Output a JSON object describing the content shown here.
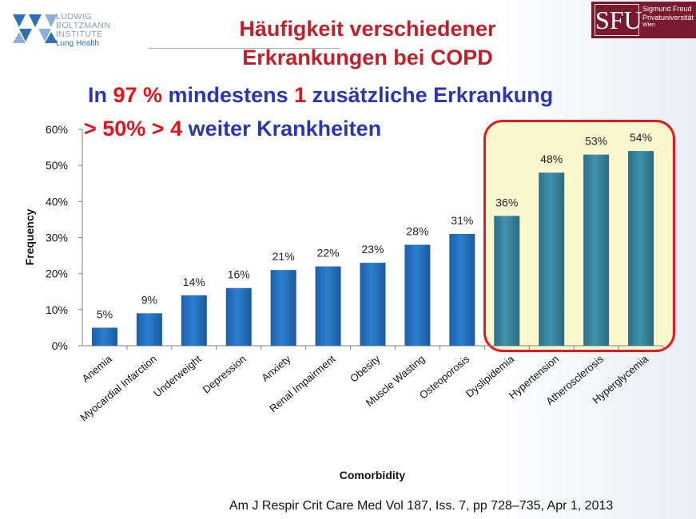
{
  "logo_left": {
    "lines": [
      "LUDWIG",
      "BOLTZMANN",
      "INSTITUTE"
    ],
    "subline": "Lung Health"
  },
  "logo_right": {
    "mark": "SFU",
    "lines": [
      "Sigmund Freud",
      "Privatuniversität",
      "Wien"
    ]
  },
  "title": {
    "line1": "Häufigkeit verschiedener",
    "line2": "Erkrankungen bei COPD"
  },
  "subtitle1": {
    "a": "In ",
    "b": "97 %",
    "c": " mindestens ",
    "d": "1",
    "e": " zusätzliche Erkrankung"
  },
  "subtitle2": {
    "a": "> 50%  > 4",
    "b": " weiter Krankheiten"
  },
  "chart_data": {
    "type": "bar",
    "title": "",
    "xlabel": "Comorbidity",
    "ylabel": "Frequency",
    "ylim": [
      0,
      60
    ],
    "yticks": [
      "0%",
      "10%",
      "20%",
      "30%",
      "40%",
      "50%",
      "60%"
    ],
    "categories": [
      "Anemia",
      "Myocardial Infarction",
      "Underweight",
      "Depression",
      "Anxiety",
      "Renal Impairment",
      "Obesity",
      "Muscle Wasting",
      "Osteoporosis",
      "Dyslipidemia",
      "Hypertension",
      "Atherosclerosis",
      "Hyperglycemia"
    ],
    "values": [
      5,
      9,
      14,
      16,
      21,
      22,
      23,
      28,
      31,
      36,
      48,
      53,
      54
    ],
    "value_labels": [
      "5%",
      "9%",
      "14%",
      "16%",
      "21%",
      "22%",
      "23%",
      "28%",
      "31%",
      "36%",
      "48%",
      "53%",
      "54%"
    ],
    "highlighted_from_index": 9,
    "colors": {
      "bar": "#2a7fd0",
      "bar_highlight": "#3f93ad",
      "highlight_border": "#e21a23",
      "highlight_fill": "#fbf8d0"
    },
    "grid": false
  },
  "citation": "Am J Respir Crit Care Med   Vol 187, Iss. 7, pp 728–735, Apr 1, 2013"
}
